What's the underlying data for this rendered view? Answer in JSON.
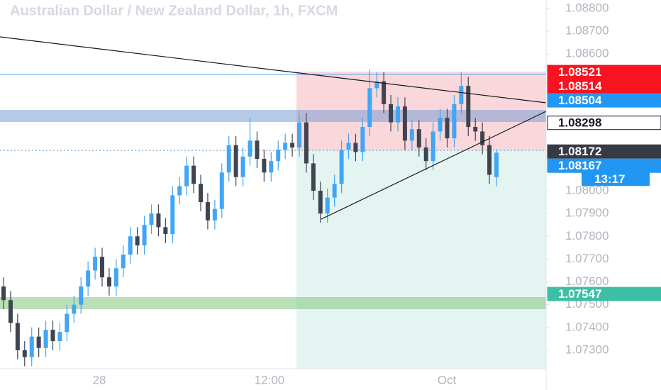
{
  "chart_data": {
    "type": "candlestick",
    "title": "Australian Dollar / New Zealand Dollar, 1h, FXCM",
    "up_color": "#42a5f5",
    "down_color": "#404451",
    "open": [
      1.0758,
      1.0752,
      1.0742,
      1.073,
      1.0727,
      1.0736,
      1.0731,
      1.0739,
      1.0734,
      1.0738,
      1.0746,
      1.075,
      1.0758,
      1.0765,
      1.0771,
      1.0762,
      1.0758,
      1.0766,
      1.0772,
      1.078,
      1.0776,
      1.0785,
      1.079,
      1.0784,
      1.0781,
      1.0798,
      1.0802,
      1.0811,
      1.0803,
      1.0795,
      1.0787,
      1.0792,
      1.0808,
      1.082,
      1.0806,
      1.0815,
      1.0822,
      1.0814,
      1.0808,
      1.0813,
      1.0818,
      1.0821,
      1.0819,
      1.083,
      1.0812,
      1.08,
      1.079,
      1.0797,
      1.0803,
      1.0818,
      1.0821,
      1.0817,
      1.0828,
      1.0845,
      1.0848,
      1.0838,
      1.083,
      1.0837,
      1.0822,
      1.0827,
      1.0819,
      1.0813,
      1.0826,
      1.0832,
      1.0823,
      1.0838,
      1.0846,
      1.0828,
      1.0826,
      1.082,
      1.0806
    ],
    "high": [
      1.0762,
      1.0756,
      1.0746,
      1.0734,
      1.074,
      1.074,
      1.0743,
      1.0743,
      1.0742,
      1.075,
      1.0754,
      1.0762,
      1.0769,
      1.0775,
      1.0775,
      1.0766,
      1.077,
      1.0776,
      1.0784,
      1.0784,
      1.0789,
      1.0794,
      1.0794,
      1.0788,
      1.0802,
      1.0806,
      1.0815,
      1.0815,
      1.0807,
      1.0799,
      1.0796,
      1.0812,
      1.0824,
      1.0824,
      1.0819,
      1.0832,
      1.0826,
      1.0818,
      1.0817,
      1.0822,
      1.0825,
      1.0825,
      1.0834,
      1.0834,
      1.0816,
      1.0804,
      1.0801,
      1.0807,
      1.0822,
      1.0825,
      1.0825,
      1.0832,
      1.0853,
      1.0852,
      1.0852,
      1.0842,
      1.0841,
      1.0841,
      1.0831,
      1.0831,
      1.0823,
      1.083,
      1.0836,
      1.0836,
      1.0842,
      1.0852,
      1.085,
      1.0832,
      1.083,
      1.0824,
      1.0818
    ],
    "low": [
      1.0748,
      1.0738,
      1.0726,
      1.0723,
      1.0723,
      1.0727,
      1.0727,
      1.073,
      1.073,
      1.0734,
      1.0742,
      1.0746,
      1.0754,
      1.0761,
      1.0758,
      1.0754,
      1.0754,
      1.0762,
      1.0768,
      1.0772,
      1.0772,
      1.0781,
      1.078,
      1.0777,
      1.0777,
      1.0794,
      1.0798,
      1.0799,
      1.0791,
      1.0783,
      1.0783,
      1.0788,
      1.0804,
      1.0802,
      1.0802,
      1.0811,
      1.081,
      1.0804,
      1.0804,
      1.0809,
      1.0814,
      1.0815,
      1.0815,
      1.0808,
      1.0796,
      1.0786,
      1.0786,
      1.0793,
      1.0799,
      1.0814,
      1.0813,
      1.0813,
      1.0824,
      1.0841,
      1.0834,
      1.0826,
      1.0826,
      1.0818,
      1.0818,
      1.0815,
      1.0809,
      1.0809,
      1.0822,
      1.0819,
      1.0819,
      1.0834,
      1.0824,
      1.0822,
      1.0816,
      1.0803,
      1.0802
    ],
    "close": [
      1.0752,
      1.0742,
      1.073,
      1.0727,
      1.0736,
      1.0731,
      1.0739,
      1.0734,
      1.0738,
      1.0746,
      1.075,
      1.0758,
      1.0765,
      1.0771,
      1.0762,
      1.0758,
      1.0766,
      1.0772,
      1.078,
      1.0776,
      1.0785,
      1.079,
      1.0784,
      1.0781,
      1.0798,
      1.0802,
      1.0811,
      1.0803,
      1.0795,
      1.0787,
      1.0792,
      1.0808,
      1.082,
      1.0806,
      1.0815,
      1.0822,
      1.0814,
      1.0808,
      1.0813,
      1.0818,
      1.0821,
      1.0819,
      1.083,
      1.0812,
      1.08,
      1.079,
      1.0797,
      1.0803,
      1.0818,
      1.0821,
      1.0817,
      1.0828,
      1.0845,
      1.0848,
      1.0838,
      1.083,
      1.0837,
      1.0822,
      1.0827,
      1.0819,
      1.0813,
      1.0826,
      1.0832,
      1.0823,
      1.0838,
      1.0846,
      1.0828,
      1.0826,
      1.082,
      1.0807,
      1.08167
    ],
    "ylim": [
      1.07219,
      1.08837
    ],
    "yticks": [
      {
        "value": 1.088,
        "label": "1.08800"
      },
      {
        "value": 1.087,
        "label": "1.08700"
      },
      {
        "value": 1.086,
        "label": "1.08600"
      },
      {
        "value": 1.08,
        "label": "1.08000"
      },
      {
        "value": 1.079,
        "label": "1.07900"
      },
      {
        "value": 1.078,
        "label": "1.07800"
      },
      {
        "value": 1.077,
        "label": "1.07700"
      },
      {
        "value": 1.076,
        "label": "1.07600"
      },
      {
        "value": 1.075,
        "label": "1.07500"
      },
      {
        "value": 1.074,
        "label": "1.07400"
      },
      {
        "value": 1.073,
        "label": "1.07300"
      }
    ],
    "x_labels": [
      "28",
      "12:00",
      "Oct"
    ],
    "price_labels": [
      {
        "value": 1.08521,
        "color": "#f7131f",
        "text_color": "#ffffff"
      },
      {
        "value": 1.08514,
        "color": "#f7131f",
        "text_color": "#ffffff"
      },
      {
        "value": 1.08504,
        "color": "#2196f3",
        "text_color": "#ffffff"
      },
      {
        "value": 1.08298,
        "color": "#ffffff",
        "text_color": "#131722"
      },
      {
        "value": 1.08172,
        "color": "#363a45",
        "text_color": "#ffffff"
      },
      {
        "value": 1.08167,
        "color": "#2196f3",
        "text_color": "#ffffff"
      },
      {
        "value": 1.07547,
        "color": "#3cbfa5",
        "text_color": "#ffffff"
      }
    ],
    "countdown": "13:17"
  }
}
